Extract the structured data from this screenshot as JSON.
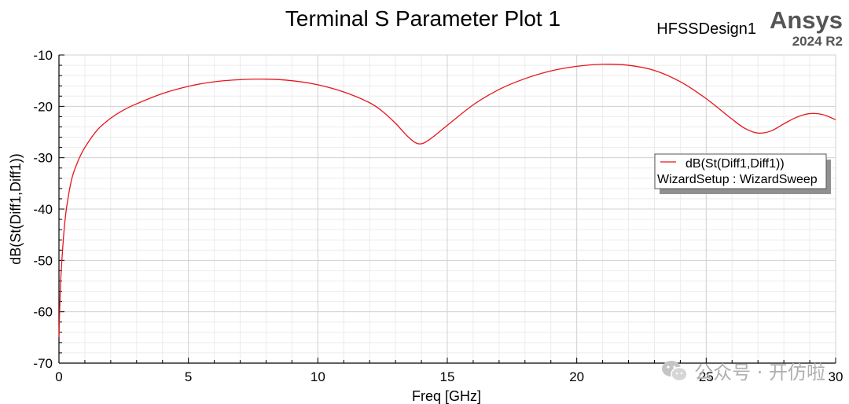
{
  "chart_data": {
    "type": "line",
    "title": "Terminal S Parameter Plot 1",
    "design_name": "HFSSDesign1",
    "brand": "Ansys",
    "version": "2024 R2",
    "xlabel": "Freq [GHz]",
    "ylabel": "dB(St(Diff1,Diff1))",
    "xlim": [
      0,
      30
    ],
    "ylim": [
      -70,
      -10
    ],
    "xticks": [
      0,
      5,
      10,
      15,
      20,
      25,
      30
    ],
    "yticks": [
      -70,
      -60,
      -50,
      -40,
      -30,
      -20,
      -10
    ],
    "grid": true,
    "legend_position": "right",
    "series": [
      {
        "name": "dB(St(Diff1,Diff1))",
        "subtitle": "WizardSetup : WizardSweep",
        "color": "#e8141c",
        "x": [
          0,
          0.05,
          0.1,
          0.2,
          0.3,
          0.5,
          0.75,
          1,
          1.5,
          2,
          2.5,
          3,
          4,
          5,
          6,
          7,
          8,
          9,
          10,
          11,
          12,
          12.5,
          13,
          13.5,
          13.9,
          14.3,
          15,
          16,
          17,
          18,
          19,
          20,
          21,
          22,
          23,
          24,
          25,
          26,
          26.5,
          27,
          27.5,
          28,
          28.5,
          29,
          29.5,
          30
        ],
        "y": [
          -65,
          -56,
          -51,
          -44,
          -39.5,
          -34,
          -30.5,
          -28,
          -24.5,
          -22.3,
          -20.7,
          -19.5,
          -17.5,
          -16.1,
          -15.2,
          -14.8,
          -14.7,
          -15,
          -15.8,
          -17.2,
          -19.3,
          -21,
          -23.3,
          -26,
          -27.3,
          -26.5,
          -23.7,
          -19.7,
          -16.7,
          -14.6,
          -13.1,
          -12.2,
          -11.8,
          -12,
          -13,
          -15.2,
          -18.5,
          -22.5,
          -24.3,
          -25.2,
          -24.8,
          -23.4,
          -22.1,
          -21.4,
          -21.6,
          -22.6
        ]
      }
    ]
  },
  "watermark": {
    "text": "公众号 · 开仿啦",
    "icon": "wechat-icon"
  }
}
